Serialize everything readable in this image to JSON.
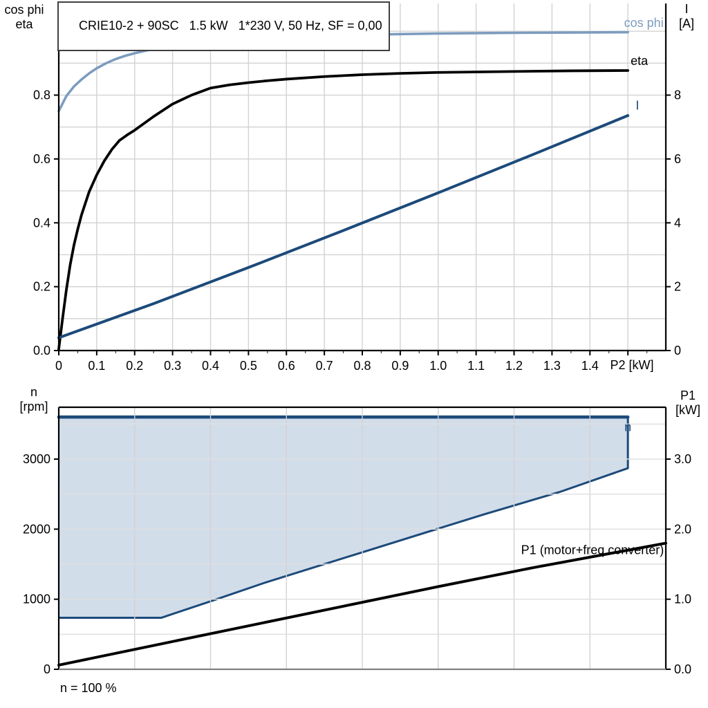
{
  "title_box": {
    "text": "CRIE10-2 + 90SC   1.5 kW   1*230 V, 50 Hz, SF = 0,00"
  },
  "axis_corner_labels": {
    "top_left_line1": "cos phi",
    "top_left_line2": "eta",
    "top_right_line1": "I",
    "top_right_line2": "[A]",
    "bottom_left_line1": "n",
    "bottom_left_line2": "[rpm]",
    "bottom_right_line1": "P1",
    "bottom_right_line2": "[kW]"
  },
  "footnote": "n = 100 %",
  "colors": {
    "steel_blue": "#7D9CBE",
    "navy": "#1C4A7A",
    "band_fill": "#D2DDEA",
    "grid": "#D2D2D2",
    "grid_light": "#DFDFDF",
    "axis_black": "#000000",
    "axis_gray": "#808080"
  },
  "chart_data": [
    {
      "type": "line",
      "name": "electrical-curves",
      "x_axis": {
        "label": "P2 [kW]",
        "min": 0,
        "max": 1.6,
        "grid_step": 0.1,
        "minor_tick_step": 0.05,
        "ticks": [
          {
            "v": 0,
            "label": "0"
          },
          {
            "v": 0.1,
            "label": "0.1"
          },
          {
            "v": 0.2,
            "label": "0.2"
          },
          {
            "v": 0.3,
            "label": "0.3"
          },
          {
            "v": 0.4,
            "label": "0.4"
          },
          {
            "v": 0.5,
            "label": "0.5"
          },
          {
            "v": 0.6,
            "label": "0.6"
          },
          {
            "v": 0.7,
            "label": "0.7"
          },
          {
            "v": 0.8,
            "label": "0.8"
          },
          {
            "v": 0.9,
            "label": "0.9"
          },
          {
            "v": 1.0,
            "label": "1.0"
          },
          {
            "v": 1.1,
            "label": "1.1"
          },
          {
            "v": 1.2,
            "label": "1.2"
          },
          {
            "v": 1.3,
            "label": "1.3"
          },
          {
            "v": 1.4,
            "label": "1.4"
          },
          {
            "v": 1.5,
            "label": ""
          }
        ]
      },
      "left_axis": {
        "title": "cos phi / eta",
        "min": 0,
        "max": 1.087,
        "grid_step": 0.1,
        "grid_max": 1.0,
        "ticks": [
          {
            "v": 0.0,
            "label": "0.0"
          },
          {
            "v": 0.2,
            "label": "0.2"
          },
          {
            "v": 0.4,
            "label": "0.4"
          },
          {
            "v": 0.6,
            "label": "0.6"
          },
          {
            "v": 0.8,
            "label": "0.8"
          }
        ]
      },
      "right_axis": {
        "title": "I [A]",
        "min": 0,
        "max": 10.87,
        "ticks": [
          {
            "v": 0,
            "label": "0"
          },
          {
            "v": 2,
            "label": "2"
          },
          {
            "v": 4,
            "label": "4"
          },
          {
            "v": 6,
            "label": "6"
          },
          {
            "v": 8,
            "label": "8"
          }
        ]
      },
      "series": [
        {
          "name": "cos phi",
          "axis": "left",
          "color": "#7D9CBE",
          "width": 3.6,
          "points": [
            [
              0,
              0.75
            ],
            [
              0.02,
              0.797
            ],
            [
              0.04,
              0.827
            ],
            [
              0.06,
              0.849
            ],
            [
              0.08,
              0.868
            ],
            [
              0.1,
              0.884
            ],
            [
              0.125,
              0.9
            ],
            [
              0.15,
              0.913
            ],
            [
              0.175,
              0.923
            ],
            [
              0.2,
              0.931
            ],
            [
              0.25,
              0.945
            ],
            [
              0.3,
              0.955
            ],
            [
              0.35,
              0.963
            ],
            [
              0.4,
              0.969
            ],
            [
              0.45,
              0.974
            ],
            [
              0.5,
              0.978
            ],
            [
              0.6,
              0.983
            ],
            [
              0.7,
              0.986
            ],
            [
              0.8,
              0.989
            ],
            [
              0.9,
              0.991
            ],
            [
              1.0,
              0.993
            ],
            [
              1.1,
              0.994
            ],
            [
              1.2,
              0.995
            ],
            [
              1.35,
              0.996
            ],
            [
              1.5,
              0.997
            ]
          ]
        },
        {
          "name": "eta",
          "axis": "left",
          "color": "#000000",
          "width": 3.8,
          "points": [
            [
              0,
              0.005
            ],
            [
              0.01,
              0.1
            ],
            [
              0.02,
              0.19
            ],
            [
              0.03,
              0.268
            ],
            [
              0.04,
              0.33
            ],
            [
              0.05,
              0.38
            ],
            [
              0.06,
              0.425
            ],
            [
              0.08,
              0.497
            ],
            [
              0.1,
              0.55
            ],
            [
              0.12,
              0.594
            ],
            [
              0.14,
              0.63
            ],
            [
              0.16,
              0.658
            ],
            [
              0.18,
              0.675
            ],
            [
              0.2,
              0.69
            ],
            [
              0.25,
              0.733
            ],
            [
              0.3,
              0.772
            ],
            [
              0.35,
              0.8
            ],
            [
              0.4,
              0.822
            ],
            [
              0.45,
              0.832
            ],
            [
              0.5,
              0.839
            ],
            [
              0.55,
              0.845
            ],
            [
              0.6,
              0.85
            ],
            [
              0.7,
              0.858
            ],
            [
              0.8,
              0.864
            ],
            [
              0.9,
              0.868
            ],
            [
              1.0,
              0.871
            ],
            [
              1.2,
              0.874
            ],
            [
              1.35,
              0.876
            ],
            [
              1.5,
              0.877
            ]
          ]
        },
        {
          "name": "I",
          "axis": "right",
          "color": "#1C4A7A",
          "width": 4,
          "points": [
            [
              0,
              0.4
            ],
            [
              0.25,
              1.47
            ],
            [
              0.5,
              2.6
            ],
            [
              0.75,
              3.76
            ],
            [
              1.0,
              4.94
            ],
            [
              1.25,
              6.14
            ],
            [
              1.5,
              7.36
            ]
          ]
        }
      ],
      "labels": [
        {
          "text": "cos phi",
          "x": 1.594,
          "y": 1.026,
          "axis": "left",
          "anchor": "end",
          "color": "#7D9CBE"
        },
        {
          "text": "eta",
          "x": 1.553,
          "y": 0.907,
          "axis": "left",
          "anchor": "end",
          "color": "#000000"
        },
        {
          "text": "I",
          "x": 1.525,
          "y": 7.68,
          "axis": "right",
          "anchor": "middle",
          "color": "#1C4A7A"
        }
      ]
    },
    {
      "type": "area+line",
      "name": "speed-and-input-power",
      "x_axis": {
        "label": "",
        "min": 0,
        "max": 1.6,
        "grid_step": 0.2,
        "ticks": []
      },
      "left_axis": {
        "title": "n [rpm]",
        "min": 0,
        "max": 3740,
        "grid_step": 500,
        "grid_max": 3500,
        "ticks": [
          {
            "v": 0,
            "label": "0"
          },
          {
            "v": 1000,
            "label": "1000"
          },
          {
            "v": 2000,
            "label": "2000"
          },
          {
            "v": 3000,
            "label": "3000"
          }
        ]
      },
      "right_axis": {
        "title": "P1 [kW]",
        "min": 0,
        "max": 3.74,
        "ticks": [
          {
            "v": 0,
            "label": "0.0"
          },
          {
            "v": 1,
            "label": "1.0"
          },
          {
            "v": 2,
            "label": "2.0"
          },
          {
            "v": 3,
            "label": "3.0"
          }
        ]
      },
      "band": {
        "name": "n speed range",
        "fill": "#D2DDEA",
        "outline_color": "#1C4A7A",
        "n_max_rpm": 3600,
        "n_min_rpm": 735,
        "n_at_full_load_rpm": 2870,
        "polygon": [
          [
            0,
            3600
          ],
          [
            1.5,
            3600
          ],
          [
            1.5,
            2870
          ],
          [
            1.32,
            2530
          ],
          [
            1.12,
            2210
          ],
          [
            0.8,
            1670
          ],
          [
            0.54,
            1230
          ],
          [
            0.4,
            970
          ],
          [
            0.27,
            735
          ],
          [
            0,
            735
          ]
        ],
        "outline": [
          [
            0,
            735
          ],
          [
            0.27,
            735
          ],
          [
            0.4,
            970
          ],
          [
            0.54,
            1230
          ],
          [
            0.8,
            1670
          ],
          [
            1.12,
            2210
          ],
          [
            1.32,
            2530
          ],
          [
            1.5,
            2870
          ],
          [
            1.5,
            3600
          ],
          [
            0,
            3600
          ]
        ],
        "top_edge": [
          [
            0,
            3600
          ],
          [
            1.5,
            3600
          ]
        ]
      },
      "series": [
        {
          "name": "P1 (motor+freq.converter)",
          "axis": "right",
          "color": "#000000",
          "width": 4,
          "points": [
            [
              0,
              0.06
            ],
            [
              0.25,
              0.34
            ],
            [
              0.5,
              0.62
            ],
            [
              0.75,
              0.9
            ],
            [
              1.0,
              1.18
            ],
            [
              1.25,
              1.45
            ],
            [
              1.5,
              1.7
            ],
            [
              1.6,
              1.8
            ]
          ]
        }
      ],
      "labels": [
        {
          "text": "n",
          "x": 1.5,
          "y": 3460,
          "axis": "left",
          "anchor": "middle",
          "color": "#1C4A7A"
        },
        {
          "text": "P1 (motor+freq.converter)",
          "x": 1.595,
          "y": 1.7,
          "axis": "right",
          "anchor": "end",
          "color": "#000000"
        }
      ],
      "footnote": "n = 100 %"
    }
  ]
}
